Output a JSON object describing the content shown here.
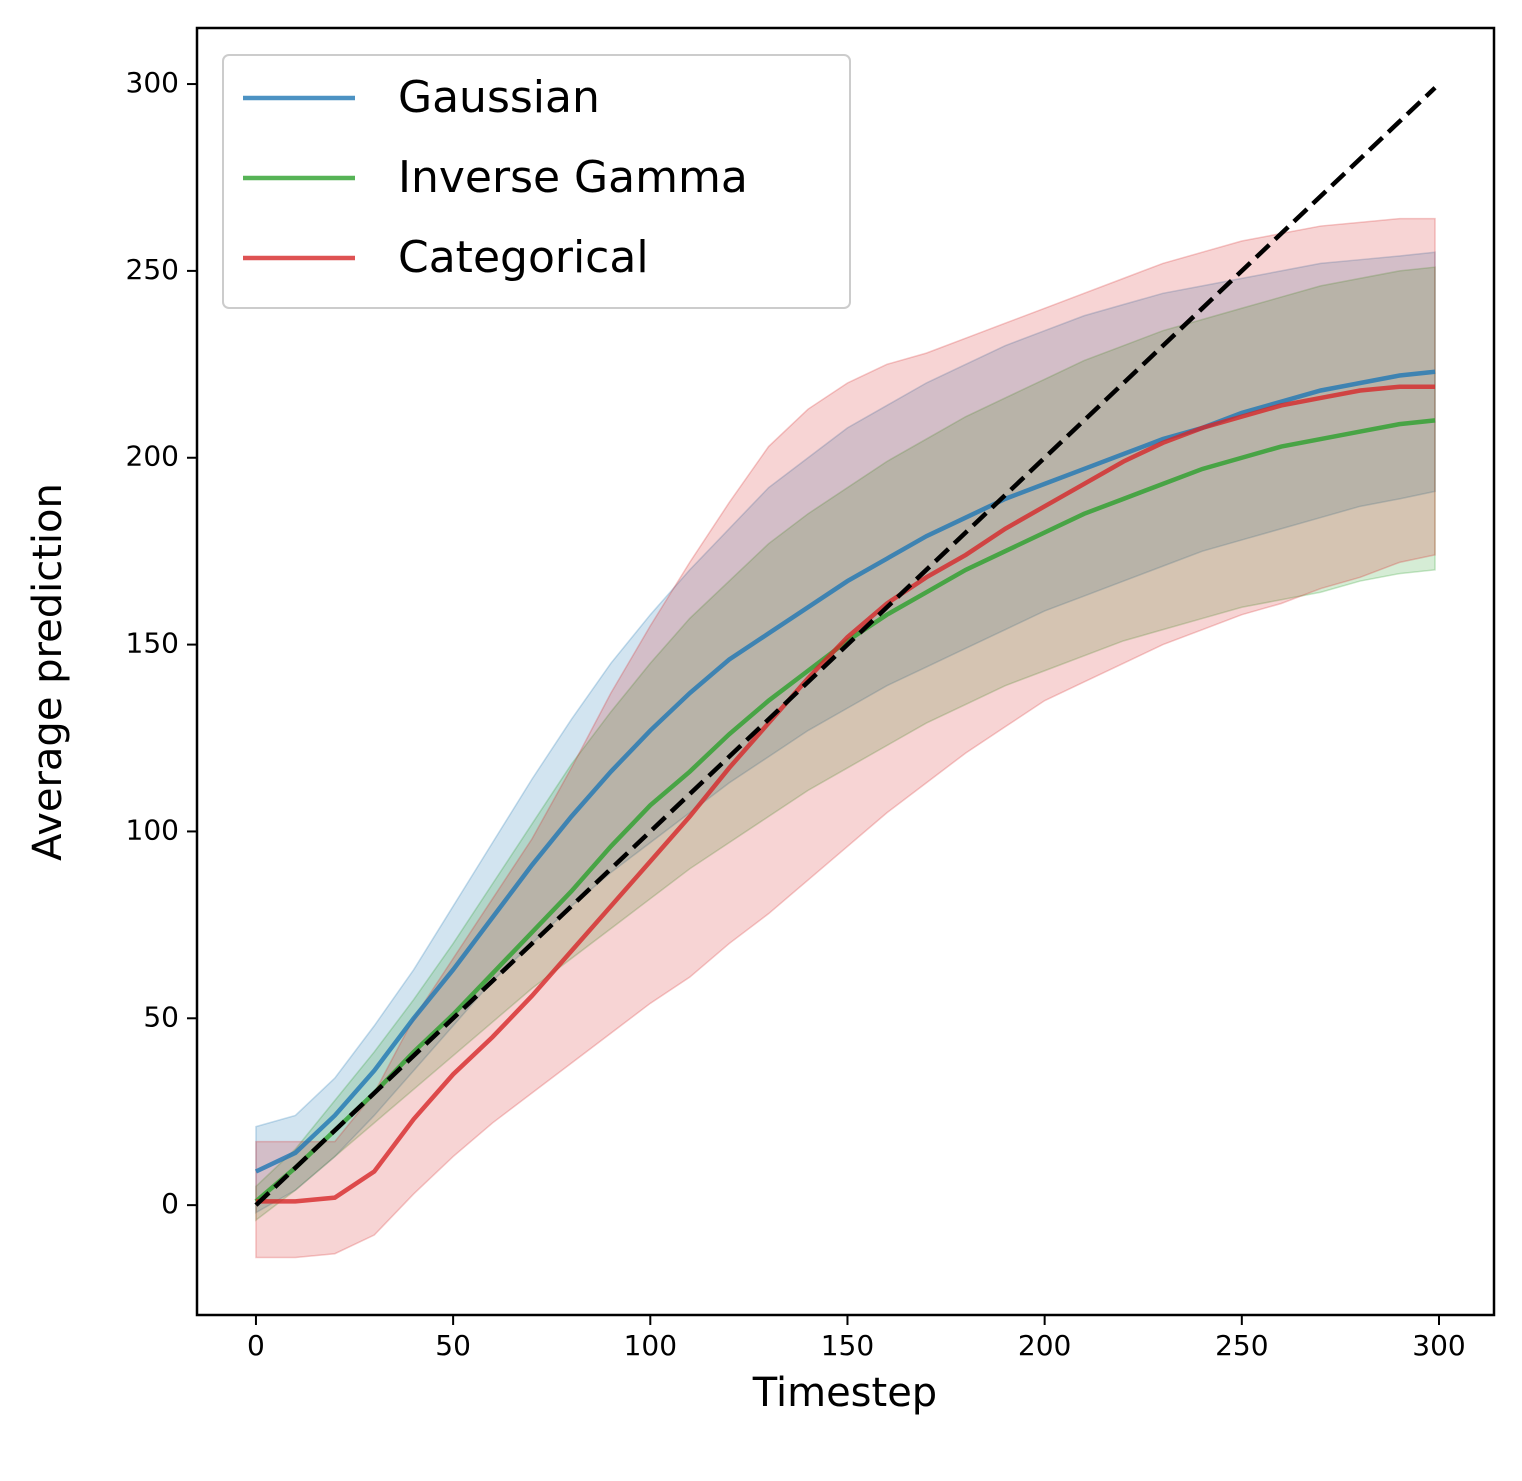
{
  "chart_data": {
    "type": "line",
    "xlabel": "Timestep",
    "ylabel": "Average prediction",
    "x": [
      0,
      10,
      20,
      30,
      40,
      50,
      60,
      70,
      80,
      90,
      100,
      110,
      120,
      130,
      140,
      150,
      160,
      170,
      180,
      190,
      200,
      210,
      220,
      230,
      240,
      250,
      260,
      270,
      280,
      290,
      299
    ],
    "series": [
      {
        "name": "Gaussian",
        "color": "#1f77b4",
        "values": [
          9,
          14,
          24,
          36,
          50,
          63,
          77,
          91,
          104,
          116,
          127,
          137,
          146,
          153,
          160,
          167,
          173,
          179,
          184,
          189,
          193,
          197,
          201,
          205,
          208,
          212,
          215,
          218,
          220,
          222,
          223
        ],
        "upper": [
          21,
          24,
          34,
          48,
          63,
          80,
          97,
          114,
          130,
          145,
          158,
          170,
          181,
          192,
          200,
          208,
          214,
          220,
          225,
          230,
          234,
          238,
          241,
          244,
          246,
          248,
          250,
          252,
          253,
          254,
          255
        ],
        "lower": [
          -2,
          4,
          13,
          24,
          36,
          48,
          60,
          70,
          80,
          89,
          97,
          105,
          113,
          120,
          127,
          133,
          139,
          144,
          149,
          154,
          159,
          163,
          167,
          171,
          175,
          178,
          181,
          184,
          187,
          189,
          191
        ]
      },
      {
        "name": "Inverse Gamma",
        "color": "#2ca02c",
        "values": [
          1,
          10,
          20,
          30,
          41,
          51,
          62,
          73,
          84,
          96,
          107,
          116,
          126,
          135,
          143,
          151,
          158,
          164,
          170,
          175,
          180,
          185,
          189,
          193,
          197,
          200,
          203,
          205,
          207,
          209,
          210
        ],
        "upper": [
          5,
          15,
          28,
          41,
          55,
          70,
          86,
          102,
          118,
          132,
          145,
          157,
          167,
          177,
          185,
          192,
          199,
          205,
          211,
          216,
          221,
          226,
          230,
          234,
          237,
          240,
          243,
          246,
          248,
          250,
          251
        ],
        "lower": [
          -4,
          4,
          13,
          22,
          31,
          40,
          49,
          58,
          66,
          74,
          82,
          90,
          97,
          104,
          111,
          117,
          123,
          129,
          134,
          139,
          143,
          147,
          151,
          154,
          157,
          160,
          162,
          164,
          167,
          169,
          170
        ]
      },
      {
        "name": "Categorical",
        "color": "#d62728",
        "values": [
          1,
          1,
          2,
          9,
          23,
          35,
          45,
          56,
          68,
          80,
          92,
          104,
          117,
          129,
          141,
          152,
          161,
          168,
          174,
          181,
          187,
          193,
          199,
          204,
          208,
          211,
          214,
          216,
          218,
          219,
          219
        ],
        "upper": [
          17,
          17,
          17,
          30,
          50,
          66,
          82,
          98,
          117,
          137,
          155,
          172,
          188,
          203,
          213,
          220,
          225,
          228,
          232,
          236,
          240,
          244,
          248,
          252,
          255,
          258,
          260,
          262,
          263,
          264,
          264
        ],
        "lower": [
          -14,
          -14,
          -13,
          -8,
          3,
          13,
          22,
          30,
          38,
          46,
          54,
          61,
          70,
          78,
          87,
          96,
          105,
          113,
          121,
          128,
          135,
          140,
          145,
          150,
          154,
          158,
          161,
          165,
          168,
          172,
          174
        ]
      }
    ],
    "reference": {
      "x": [
        0,
        299
      ],
      "values": [
        0,
        299
      ],
      "color": "#000000",
      "dashed": true
    },
    "xlim": [
      -14.95,
      313.95
    ],
    "xticks": [
      0,
      50,
      100,
      150,
      200,
      250,
      300
    ],
    "ylim": [
      -29.4,
      315
    ],
    "yticks": [
      0,
      50,
      100,
      150,
      200,
      250,
      300
    ],
    "legend": "upper left",
    "grid": false
  }
}
